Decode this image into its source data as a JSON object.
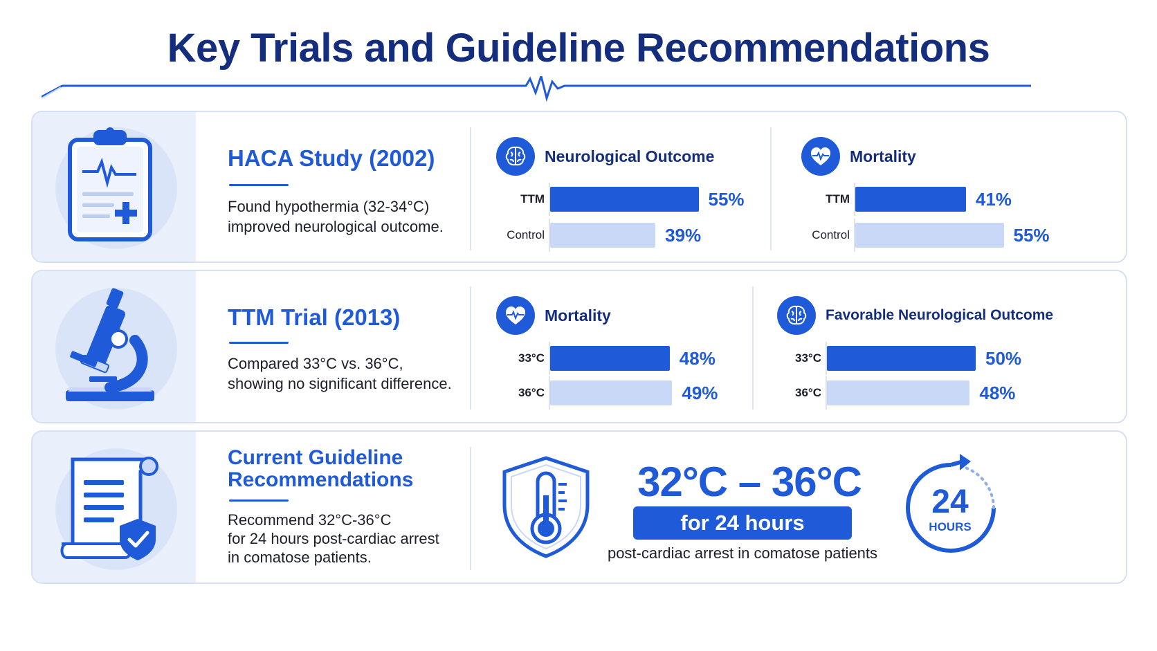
{
  "page": {
    "title": "Key Trials and Guideline Recommendations"
  },
  "colors": {
    "primary": "#1f5ad8",
    "dark": "#142d7d",
    "bar_light": "#c9d8f6",
    "card_bg": "#eaf0fb"
  },
  "trials": [
    {
      "name": "HACA Study (2002)",
      "icon": "clipboard-ecg-icon",
      "description_lines": [
        "Found hypothermia (32-34°C)",
        "improved neurological outcome."
      ],
      "panels": [
        {
          "label": "Neurological Outcome",
          "icon": "brain-icon",
          "rows": [
            {
              "label": "TTM",
              "value": 55,
              "display": "55%"
            },
            {
              "label": "Control",
              "value": 39,
              "display": "39%"
            }
          ]
        },
        {
          "label": "Mortality",
          "icon": "heart-pulse-icon",
          "rows": [
            {
              "label": "TTM",
              "value": 41,
              "display": "41%"
            },
            {
              "label": "Control",
              "value": 55,
              "display": "55%"
            }
          ]
        }
      ]
    },
    {
      "name": "TTM Trial (2013)",
      "icon": "microscope-icon",
      "description_lines": [
        "Compared 33°C vs. 36°C,",
        "showing no significant difference."
      ],
      "panels": [
        {
          "label": "Mortality",
          "icon": "heart-pulse-icon",
          "rows": [
            {
              "label": "33°C",
              "value": 48,
              "display": "48%"
            },
            {
              "label": "36°C",
              "value": 49,
              "display": "49%"
            }
          ]
        },
        {
          "label": "Favorable Neurological Outcome",
          "icon": "brain-icon",
          "rows": [
            {
              "label": "33°C",
              "value": 50,
              "display": "50%"
            },
            {
              "label": "36°C",
              "value": 48,
              "display": "48%"
            }
          ]
        }
      ]
    }
  ],
  "guideline": {
    "name_lines": [
      "Current Guideline",
      "Recommendations"
    ],
    "icon": "scroll-shield-check-icon",
    "description_lines": [
      "Recommend 32°C-36°C",
      "for 24 hours post-cardiac arrest",
      "in comatose patients."
    ],
    "range": "32°C – 36°C",
    "duration": "for 24 hours",
    "subtext": "post-cardiac arrest in comatose patients",
    "thermometer_icon": "shield-thermometer-icon",
    "hours_number": "24",
    "hours_label": "HOURS",
    "timer_icon": "circular-arrow-timer-icon"
  }
}
